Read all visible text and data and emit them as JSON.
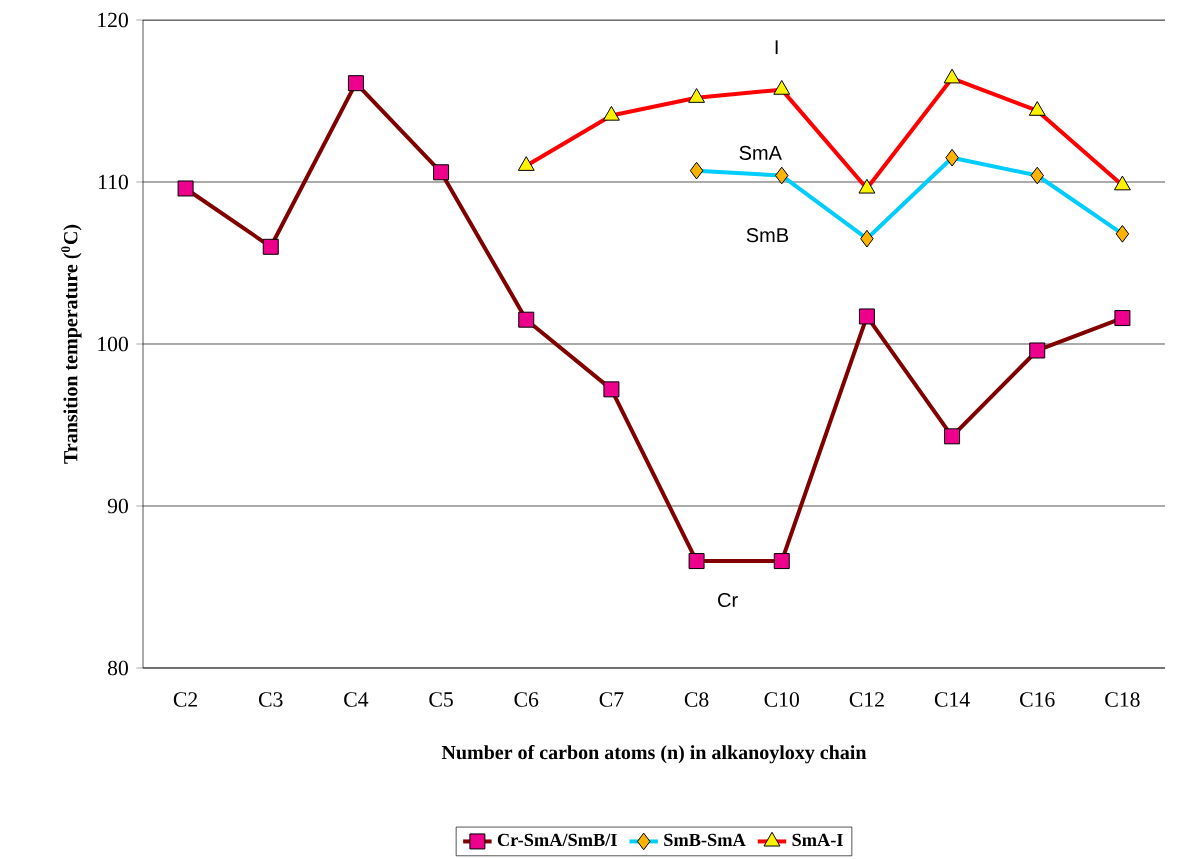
{
  "chart_data": {
    "type": "line",
    "xlabel": "Number of carbon atoms (n) in alkanoyloxy chain",
    "ylabel": "Transition temperature ($^{0}$C)",
    "categories": [
      "C2",
      "C3",
      "C4",
      "C5",
      "C6",
      "C7",
      "C8",
      "C10",
      "C12",
      "C14",
      "C16",
      "C18"
    ],
    "series": [
      {
        "name": "Cr-SmA/SmB/I",
        "color": "#800000",
        "marker": "square",
        "values": [
          109.6,
          106.0,
          116.1,
          110.6,
          101.5,
          97.2,
          86.6,
          86.6,
          101.7,
          94.3,
          99.6,
          101.6
        ]
      },
      {
        "name": "SmB-SmA",
        "color": "#00ccff",
        "marker": "diamond",
        "values": [
          null,
          null,
          null,
          null,
          null,
          null,
          110.7,
          110.4,
          106.5,
          111.5,
          110.4,
          106.8
        ]
      },
      {
        "name": "SmA-I",
        "color": "#ff0000",
        "marker": "triangle",
        "values": [
          null,
          null,
          null,
          null,
          111.0,
          114.1,
          115.2,
          115.7,
          109.6,
          116.4,
          114.4,
          109.8
        ]
      }
    ],
    "ylim": [
      80,
      120
    ],
    "yticks": [
      80,
      90,
      100,
      110,
      120
    ],
    "grid": "y",
    "legend": "bottom",
    "line_style": "solid",
    "annotations": [
      "I",
      "SmA",
      "SmB",
      "Cr"
    ]
  }
}
